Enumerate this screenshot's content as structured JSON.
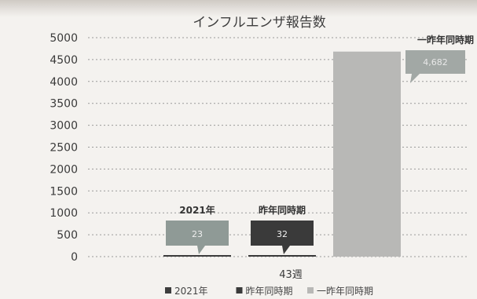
{
  "chart_data": {
    "type": "bar",
    "title": "インフルエンザ報告数",
    "categories": [
      "43週"
    ],
    "ylim": [
      0,
      5000
    ],
    "yticks": [
      0,
      500,
      1000,
      1500,
      2000,
      2500,
      3000,
      3500,
      4000,
      4500,
      5000
    ],
    "grid": true,
    "legend_position": "bottom",
    "series": [
      {
        "name": "2021年",
        "values": [
          23
        ],
        "data_label": "23",
        "color": "#3d3d3d",
        "callout_fill": "#8f9a96",
        "callout_text_color": "#eeeeee"
      },
      {
        "name": "昨年同時期",
        "values": [
          32
        ],
        "data_label": "32",
        "color": "#3a3a3a",
        "callout_fill": "#3a3a3a",
        "callout_text_color": "#f2f2f2"
      },
      {
        "name": "一昨年同時期",
        "values": [
          4682
        ],
        "data_label": "4,682",
        "color": "#b8b8b6",
        "callout_fill": "#a2a8a5",
        "callout_text_color": "#e8e8e8"
      }
    ]
  }
}
